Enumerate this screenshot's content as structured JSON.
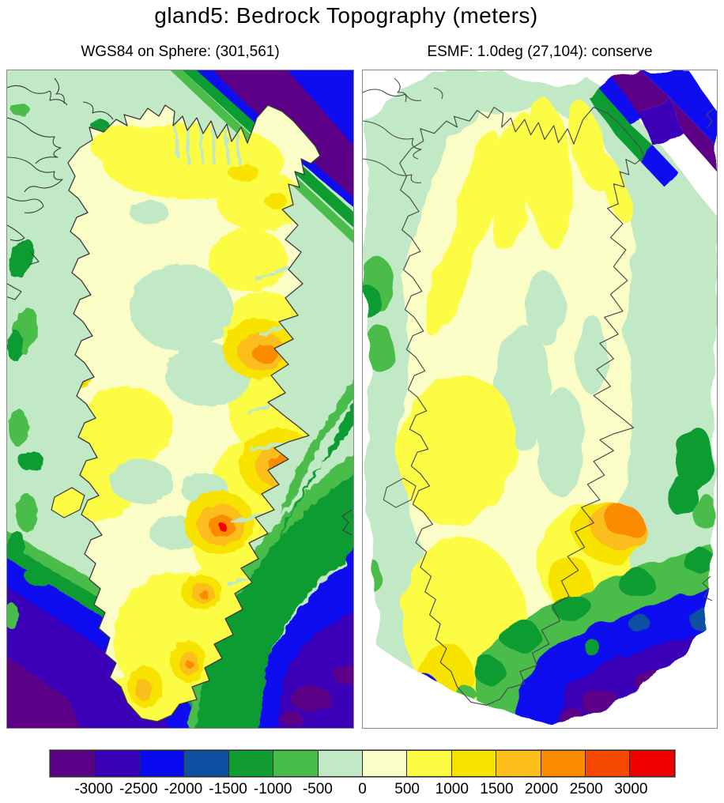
{
  "title": "gland5: Bedrock Topography (meters)",
  "panels": {
    "left": {
      "subtitle": "WGS84 on Sphere: (301,561)"
    },
    "right": {
      "subtitle": "ESMF: 1.0deg (27,104): conserve"
    }
  },
  "chart_data": {
    "type": "heatmap",
    "title": "gland5: Bedrock Topography (meters)",
    "variable": "Bedrock Topography",
    "units": "meters",
    "panels": [
      {
        "subtitle": "WGS84 on Sphere: (301,561)",
        "grid": "WGS84 on Sphere",
        "shape": [
          301,
          561
        ]
      },
      {
        "subtitle": "ESMF: 1.0deg (27,104): conserve",
        "grid": "ESMF 1.0deg",
        "shape": [
          27,
          104
        ],
        "regrid_method": "conserve"
      }
    ],
    "region": "Greenland",
    "colorbar": {
      "orientation": "horizontal",
      "position": "bottom",
      "levels": [
        -3000,
        -2500,
        -2000,
        -1500,
        -1000,
        -500,
        0,
        500,
        1000,
        1500,
        2000,
        2500,
        3000
      ],
      "tick_labels": [
        "-3000",
        "-2500",
        "-2000",
        "-1500",
        "-1000",
        "-500",
        "0",
        "500",
        "1000",
        "1500",
        "2000",
        "2500",
        "3000"
      ],
      "colors": [
        "#5B0087",
        "#3A00B8",
        "#0A0AF0",
        "#0E4FA1",
        "#109C30",
        "#48BC48",
        "#C2E9C6",
        "#FBFDC7",
        "#FCFC45",
        "#F8E200",
        "#FBBE1A",
        "#FB8C00",
        "#F84900",
        "#F20000"
      ]
    },
    "map_colors": {
      "ocean_shelf": "#C2E9C6",
      "land_low": "#FBFDC7",
      "coastline": "#3A3A3A",
      "background": "#FFFFFF"
    }
  }
}
